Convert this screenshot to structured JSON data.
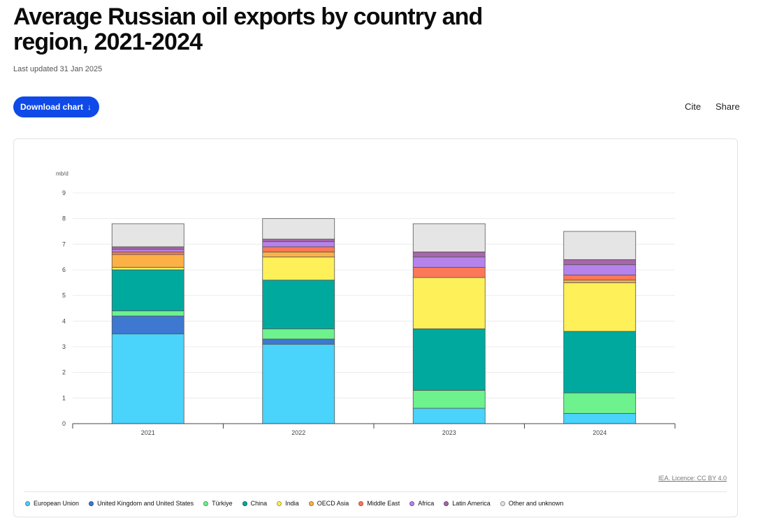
{
  "header": {
    "title": "Average Russian oil exports by country and region, 2021-2024",
    "updated": "Last updated 31 Jan 2025"
  },
  "toolbar": {
    "download_label": "Download chart",
    "download_arrow": "↓",
    "cite_label": "Cite",
    "share_label": "Share"
  },
  "footer": {
    "licence": "IEA. Licence: CC BY 4.0"
  },
  "chart_data": {
    "type": "bar",
    "stacked": true,
    "unit_label": "mb/d",
    "ylim": [
      0,
      9
    ],
    "yticks": [
      0,
      1,
      2,
      3,
      4,
      5,
      6,
      7,
      8,
      9
    ],
    "grid": true,
    "legend_position": "bottom",
    "categories": [
      "2021",
      "2022",
      "2023",
      "2024"
    ],
    "series": [
      {
        "name": "European Union",
        "color": "#4ad3fb",
        "values": [
          3.5,
          3.1,
          0.6,
          0.4
        ]
      },
      {
        "name": "United Kingdom and United States",
        "color": "#3e78d1",
        "values": [
          0.7,
          0.2,
          0.0,
          0.0
        ]
      },
      {
        "name": "Türkiye",
        "color": "#6ef28e",
        "values": [
          0.2,
          0.4,
          0.7,
          0.8
        ]
      },
      {
        "name": "China",
        "color": "#00a99d",
        "values": [
          1.6,
          1.9,
          2.4,
          2.4
        ]
      },
      {
        "name": "India",
        "color": "#fdf059",
        "values": [
          0.1,
          0.9,
          2.0,
          1.9
        ]
      },
      {
        "name": "OECD Asia",
        "color": "#fcb146",
        "values": [
          0.5,
          0.2,
          0.0,
          0.1
        ]
      },
      {
        "name": "Middle East",
        "color": "#fb7859",
        "values": [
          0.1,
          0.2,
          0.4,
          0.2
        ]
      },
      {
        "name": "Africa",
        "color": "#b683ec",
        "values": [
          0.1,
          0.2,
          0.4,
          0.4
        ]
      },
      {
        "name": "Latin America",
        "color": "#a666ab",
        "values": [
          0.1,
          0.1,
          0.2,
          0.2
        ]
      },
      {
        "name": "Other and unknown",
        "color": "#e5e5e5",
        "values": [
          0.9,
          0.8,
          1.1,
          1.1
        ]
      }
    ]
  }
}
